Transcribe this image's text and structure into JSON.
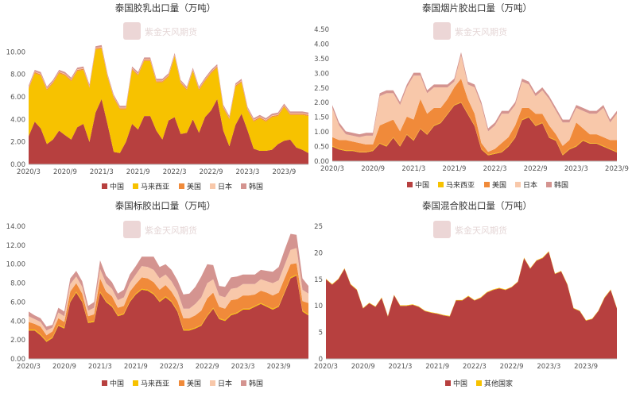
{
  "watermark": {
    "main": "紫金天风期货"
  },
  "colors": {
    "中国": "#b7403f",
    "马来西亚": "#f7c200",
    "美国": "#f08a3a",
    "日本": "#f8c8aa",
    "韩国": "#d49490",
    "其他国家": "#f7c200"
  },
  "chart_data": [
    {
      "type": "area",
      "stacked": true,
      "title": "泰国胶乳出口量（万吨）",
      "xlabel": "",
      "ylabel": "",
      "ylim": [
        0,
        12
      ],
      "yticks": [
        0,
        2,
        4,
        6,
        8,
        10
      ],
      "tick_decimals": 2,
      "x_tick_labels": [
        "2020/3",
        "2020/9",
        "2021/3",
        "2021/9",
        "2022/3",
        "2022/9",
        "2023/3",
        "2023/9"
      ],
      "legend": [
        "中国",
        "马来西亚",
        "美国",
        "日本",
        "韩国"
      ],
      "series": [
        {
          "name": "中国",
          "values": [
            2.5,
            3.8,
            3.2,
            1.8,
            2.2,
            3.0,
            2.6,
            2.2,
            3.3,
            3.6,
            2.0,
            4.6,
            5.8,
            3.5,
            1.1,
            1.0,
            2.0,
            3.6,
            3.1,
            4.3,
            4.3,
            3.0,
            2.2,
            3.9,
            4.2,
            2.7,
            2.8,
            4.0,
            2.8,
            4.2,
            4.8,
            5.8,
            3.0,
            1.6,
            3.5,
            4.5,
            3.0,
            1.4,
            1.2,
            1.2,
            1.3,
            1.8,
            2.1,
            2.2,
            1.5,
            1.3,
            1.0
          ]
        },
        {
          "name": "马来西亚",
          "values": [
            4.2,
            4.3,
            4.7,
            4.8,
            5.0,
            5.1,
            5.3,
            5.2,
            5.0,
            4.8,
            4.8,
            5.6,
            4.5,
            4.2,
            4.8,
            3.9,
            2.9,
            4.8,
            4.8,
            4.9,
            4.9,
            4.3,
            5.1,
            3.9,
            5.4,
            4.5,
            3.8,
            4.3,
            3.8,
            3.2,
            3.3,
            2.8,
            2.0,
            2.4,
            3.4,
            2.8,
            1.8,
            2.4,
            2.9,
            2.6,
            2.9,
            2.5,
            3.0,
            2.2,
            2.9,
            3.1,
            3.3
          ]
        },
        {
          "name": "美国",
          "values": [
            0.1,
            0.1,
            0.1,
            0.1,
            0.1,
            0.1,
            0.1,
            0.1,
            0.1,
            0.1,
            0.1,
            0.1,
            0.1,
            0.1,
            0.1,
            0.1,
            0.1,
            0.1,
            0.1,
            0.1,
            0.1,
            0.1,
            0.1,
            0.1,
            0.1,
            0.1,
            0.1,
            0.1,
            0.1,
            0.1,
            0.1,
            0.1,
            0.1,
            0.1,
            0.1,
            0.1,
            0.1,
            0.1,
            0.1,
            0.1,
            0.1,
            0.1,
            0.1,
            0.1,
            0.1,
            0.1,
            0.1
          ]
        },
        {
          "name": "日本",
          "values": [
            0.05,
            0.05,
            0.05,
            0.05,
            0.05,
            0.05,
            0.05,
            0.05,
            0.05,
            0.05,
            0.05,
            0.05,
            0.05,
            0.05,
            0.05,
            0.05,
            0.05,
            0.05,
            0.05,
            0.05,
            0.05,
            0.05,
            0.05,
            0.05,
            0.05,
            0.05,
            0.05,
            0.05,
            0.05,
            0.05,
            0.05,
            0.05,
            0.05,
            0.05,
            0.05,
            0.05,
            0.05,
            0.05,
            0.05,
            0.05,
            0.05,
            0.05,
            0.05,
            0.05,
            0.05,
            0.05,
            0.05
          ]
        },
        {
          "name": "韩国",
          "values": [
            0.15,
            0.15,
            0.15,
            0.15,
            0.15,
            0.15,
            0.15,
            0.15,
            0.15,
            0.15,
            0.15,
            0.15,
            0.15,
            0.15,
            0.15,
            0.15,
            0.15,
            0.15,
            0.15,
            0.15,
            0.15,
            0.15,
            0.15,
            0.15,
            0.15,
            0.15,
            0.15,
            0.15,
            0.15,
            0.15,
            0.15,
            0.15,
            0.15,
            0.15,
            0.15,
            0.15,
            0.15,
            0.15,
            0.15,
            0.15,
            0.15,
            0.15,
            0.15,
            0.15,
            0.15,
            0.15,
            0.15
          ]
        }
      ]
    },
    {
      "type": "area",
      "stacked": true,
      "title": "泰国烟片胶出口量（万吨）",
      "xlabel": "",
      "ylabel": "",
      "ylim": [
        0,
        4.5
      ],
      "yticks": [
        0,
        0.5,
        1,
        1.5,
        2,
        2.5,
        3,
        3.5,
        4,
        4.5
      ],
      "tick_decimals": 2,
      "x_tick_labels": [
        "2020/3",
        "2020/9",
        "2021/3",
        "2021/9",
        "2022/3",
        "2022/9",
        "2023/3",
        "2023/9"
      ],
      "legend": [
        "中国",
        "马来西亚",
        "美国",
        "日本",
        "韩国"
      ],
      "series": [
        {
          "name": "中国",
          "values": [
            0.5,
            0.4,
            0.35,
            0.35,
            0.3,
            0.3,
            0.35,
            0.6,
            0.5,
            0.8,
            0.5,
            0.9,
            0.7,
            1.1,
            0.9,
            1.2,
            1.3,
            1.6,
            1.9,
            2.0,
            1.6,
            1.2,
            0.4,
            0.2,
            0.25,
            0.3,
            0.5,
            0.8,
            1.4,
            1.5,
            1.2,
            1.3,
            0.8,
            0.7,
            0.2,
            0.4,
            0.5,
            0.7,
            0.6,
            0.6,
            0.5,
            0.4,
            0.3
          ]
        },
        {
          "name": "马来西亚",
          "values": [
            0.02,
            0.02,
            0.02,
            0.02,
            0.02,
            0.02,
            0.02,
            0.02,
            0.02,
            0.02,
            0.02,
            0.02,
            0.02,
            0.02,
            0.02,
            0.02,
            0.02,
            0.02,
            0.02,
            0.02,
            0.02,
            0.02,
            0.02,
            0.02,
            0.02,
            0.02,
            0.02,
            0.02,
            0.02,
            0.02,
            0.02,
            0.02,
            0.02,
            0.02,
            0.02,
            0.02,
            0.02,
            0.02,
            0.02,
            0.02,
            0.02,
            0.02,
            0.02
          ]
        },
        {
          "name": "美国",
          "values": [
            0.3,
            0.3,
            0.35,
            0.3,
            0.3,
            0.25,
            0.2,
            0.6,
            0.8,
            0.6,
            0.5,
            0.6,
            0.7,
            1.0,
            0.7,
            0.6,
            0.5,
            0.5,
            0.6,
            0.8,
            0.5,
            0.4,
            0.2,
            0.1,
            0.15,
            0.3,
            0.3,
            0.4,
            0.4,
            0.3,
            0.4,
            0.3,
            0.4,
            0.2,
            0.3,
            0.3,
            0.8,
            0.4,
            0.3,
            0.3,
            0.3,
            0.3,
            0.4
          ]
        },
        {
          "name": "日本",
          "values": [
            1.0,
            0.5,
            0.2,
            0.2,
            0.2,
            0.3,
            0.3,
            1.0,
            1.0,
            0.9,
            0.9,
            1.0,
            1.5,
            0.8,
            0.7,
            0.7,
            0.7,
            0.4,
            0.2,
            0.8,
            0.5,
            0.9,
            1.3,
            0.7,
            0.8,
            1.0,
            0.8,
            0.7,
            0.9,
            0.8,
            0.6,
            0.8,
            0.9,
            0.8,
            0.8,
            0.6,
            0.5,
            0.6,
            0.7,
            0.7,
            1.0,
            0.6,
            0.9
          ]
        },
        {
          "name": "韩国",
          "values": [
            0.1,
            0.1,
            0.1,
            0.1,
            0.1,
            0.1,
            0.1,
            0.1,
            0.1,
            0.1,
            0.1,
            0.1,
            0.1,
            0.1,
            0.1,
            0.1,
            0.1,
            0.1,
            0.1,
            0.1,
            0.1,
            0.1,
            0.1,
            0.1,
            0.1,
            0.1,
            0.1,
            0.1,
            0.1,
            0.1,
            0.1,
            0.1,
            0.1,
            0.1,
            0.1,
            0.1,
            0.1,
            0.1,
            0.1,
            0.1,
            0.1,
            0.1,
            0.1
          ]
        }
      ]
    },
    {
      "type": "area",
      "stacked": true,
      "title": "泰国标胶出口量（万吨）",
      "xlabel": "",
      "ylabel": "",
      "ylim": [
        0,
        14
      ],
      "yticks": [
        0,
        2,
        4,
        6,
        8,
        10,
        12,
        14
      ],
      "tick_decimals": 2,
      "x_tick_labels": [
        "2020/3",
        "2020/9",
        "2021/3",
        "2021/9",
        "2022/3",
        "2022/9",
        "2023/3",
        "2023/9"
      ],
      "legend": [
        "中国",
        "马来西亚",
        "美国",
        "日本",
        "韩国"
      ],
      "series": [
        {
          "name": "中国",
          "values": [
            3.0,
            3.0,
            2.5,
            1.8,
            2.2,
            3.5,
            3.2,
            6.0,
            7.0,
            6.0,
            3.8,
            3.9,
            7.0,
            6.0,
            5.5,
            4.5,
            4.7,
            6.0,
            6.8,
            7.3,
            7.2,
            6.8,
            6.0,
            6.5,
            6.0,
            5.0,
            3.0,
            3.0,
            3.2,
            3.5,
            4.5,
            5.3,
            4.2,
            4.0,
            4.6,
            4.8,
            5.2,
            5.2,
            5.5,
            5.8,
            5.5,
            5.2,
            5.5,
            7.0,
            8.5,
            8.8,
            5.0,
            4.6
          ]
        },
        {
          "name": "马来西亚",
          "values": [
            0.1,
            0.1,
            0.1,
            0.1,
            0.1,
            0.1,
            0.1,
            0.1,
            0.1,
            0.1,
            0.1,
            0.1,
            0.1,
            0.1,
            0.1,
            0.1,
            0.1,
            0.1,
            0.1,
            0.1,
            0.1,
            0.1,
            0.1,
            0.1,
            0.1,
            0.1,
            0.1,
            0.1,
            0.1,
            0.1,
            0.1,
            0.1,
            0.1,
            0.1,
            0.1,
            0.1,
            0.1,
            0.1,
            0.1,
            0.1,
            0.1,
            0.1,
            0.1,
            0.1,
            0.1,
            0.1,
            0.1,
            0.1
          ]
        },
        {
          "name": "美国",
          "values": [
            0.8,
            0.6,
            0.8,
            0.6,
            0.6,
            0.7,
            0.6,
            1.0,
            0.9,
            0.8,
            0.6,
            0.7,
            1.4,
            1.0,
            1.0,
            0.8,
            0.8,
            1.0,
            1.0,
            1.2,
            1.2,
            1.2,
            1.2,
            1.2,
            1.0,
            1.0,
            1.2,
            1.2,
            1.3,
            1.5,
            1.8,
            1.6,
            1.2,
            1.2,
            1.5,
            1.4,
            1.4,
            1.4,
            1.2,
            1.3,
            1.4,
            1.4,
            1.4,
            1.4,
            1.4,
            1.2,
            1.0,
            1.2
          ]
        },
        {
          "name": "日本",
          "values": [
            0.6,
            0.5,
            0.5,
            0.5,
            0.4,
            0.6,
            0.6,
            0.8,
            0.7,
            0.7,
            0.6,
            0.7,
            1.0,
            0.9,
            0.8,
            0.8,
            0.9,
            0.9,
            1.0,
            1.2,
            1.2,
            1.3,
            1.2,
            1.1,
            1.1,
            1.0,
            1.0,
            1.0,
            1.2,
            1.4,
            1.6,
            1.4,
            1.2,
            1.2,
            1.2,
            1.2,
            1.2,
            1.2,
            1.1,
            1.2,
            1.2,
            1.3,
            1.3,
            1.4,
            1.5,
            1.6,
            1.2,
            1.0
          ]
        },
        {
          "name": "韩国",
          "values": [
            0.5,
            0.4,
            0.4,
            0.4,
            0.3,
            0.5,
            0.5,
            0.6,
            0.6,
            0.6,
            0.5,
            0.6,
            0.9,
            0.8,
            0.7,
            0.7,
            0.8,
            0.9,
            0.9,
            1.0,
            1.1,
            1.4,
            1.2,
            1.1,
            1.2,
            1.2,
            1.5,
            1.6,
            1.8,
            2.2,
            2.0,
            1.5,
            1.0,
            1.1,
            1.2,
            1.2,
            1.0,
            1.0,
            1.0,
            1.0,
            1.1,
            1.2,
            1.4,
            1.6,
            1.7,
            1.4,
            1.2,
            0.8
          ]
        }
      ]
    },
    {
      "type": "area",
      "stacked": true,
      "title": "泰国混合胶出口量（万吨）",
      "xlabel": "",
      "ylabel": "",
      "ylim": [
        0,
        25
      ],
      "yticks": [
        0,
        5,
        10,
        15,
        20,
        25
      ],
      "tick_decimals": 0,
      "x_tick_labels": [
        "2020/3",
        "2020/9",
        "2021/3",
        "2021/9",
        "2022/3",
        "2022/9",
        "2023/3",
        "2023/9"
      ],
      "legend": [
        "中国",
        "其他国家"
      ],
      "series": [
        {
          "name": "中国",
          "values": [
            15.0,
            14.0,
            15.0,
            17.0,
            14.0,
            13.0,
            9.5,
            10.5,
            9.8,
            11.5,
            8.0,
            12.0,
            10.0,
            10.0,
            10.2,
            9.8,
            9.0,
            8.7,
            8.5,
            8.2,
            8.0,
            11.0,
            11.0,
            11.8,
            11.0,
            11.5,
            12.5,
            13.0,
            13.3,
            13.0,
            13.5,
            14.5,
            19.0,
            17.0,
            18.5,
            19.0,
            20.2,
            16.0,
            16.5,
            14.0,
            9.5,
            9.0,
            7.2,
            7.5,
            9.0,
            11.5,
            13.0,
            9.5
          ]
        },
        {
          "name": "其他国家",
          "values": [
            0.1,
            0.1,
            0.1,
            0.1,
            0.1,
            0.1,
            0.1,
            0.1,
            0.1,
            0.1,
            0.1,
            0.1,
            0.1,
            0.1,
            0.1,
            0.1,
            0.1,
            0.1,
            0.1,
            0.1,
            0.1,
            0.1,
            0.1,
            0.1,
            0.1,
            0.1,
            0.1,
            0.1,
            0.1,
            0.1,
            0.1,
            0.1,
            0.1,
            0.1,
            0.1,
            0.1,
            0.1,
            0.1,
            0.1,
            0.1,
            0.1,
            0.1,
            0.1,
            0.1,
            0.1,
            0.1,
            0.1,
            0.1
          ]
        }
      ]
    }
  ]
}
